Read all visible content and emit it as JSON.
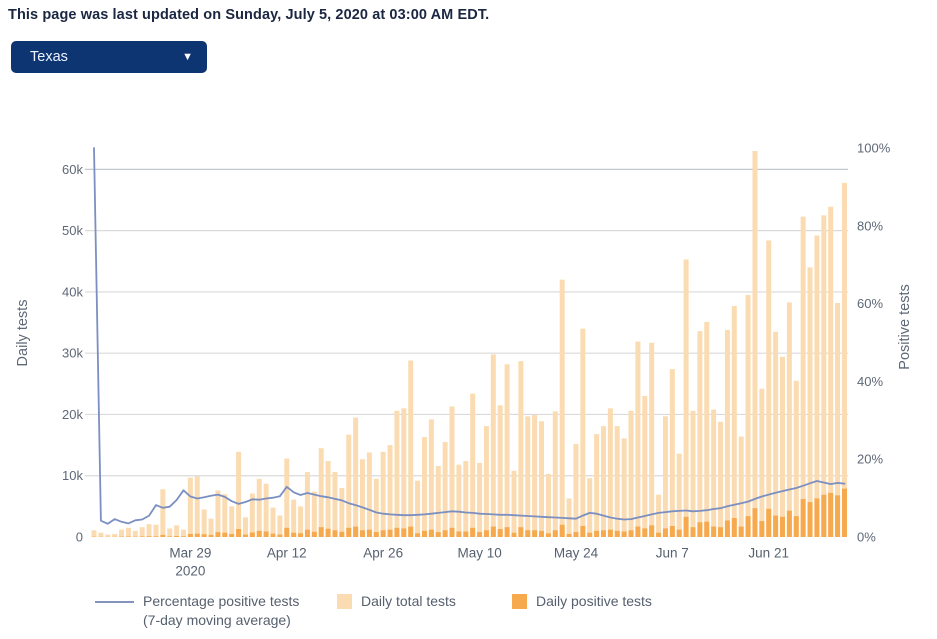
{
  "banner": {
    "text": "This page was last updated on Sunday, July 5, 2020 at 03:00 AM EDT."
  },
  "state_selector": {
    "value": "Texas",
    "caret": "▼",
    "bg_color": "#0d3572"
  },
  "legend": {
    "line_label_1": "Percentage positive tests",
    "line_label_2": "(7-day moving average)",
    "total_label": "Daily total tests",
    "positive_label": "Daily positive tests"
  },
  "chart_data": {
    "type": "bar",
    "subtype": "dual-axis combo: daily bars + percentage line, one bar per day",
    "title": "",
    "grid": "horizontal gridlines at 10k steps",
    "legend_position": "bottom",
    "x_axis": {
      "unit": "day",
      "n_days": 110,
      "ticks": [
        {
          "label": "Mar 29",
          "year": "2020",
          "day_index": 14
        },
        {
          "label": "Apr 12",
          "day_index": 28
        },
        {
          "label": "Apr 26",
          "day_index": 42
        },
        {
          "label": "May 10",
          "day_index": 56
        },
        {
          "label": "May 24",
          "day_index": 70
        },
        {
          "label": "Jun 7",
          "day_index": 84
        },
        {
          "label": "Jun 21",
          "day_index": 98
        }
      ]
    },
    "y_left": {
      "label": "Daily tests",
      "ticks": [
        "0",
        "10k",
        "20k",
        "30k",
        "40k",
        "50k",
        "60k"
      ],
      "tick_values_k": [
        0,
        10,
        20,
        30,
        40,
        50,
        60
      ],
      "max_value_k": 63.5
    },
    "y_right": {
      "label": "Positive tests",
      "ticks": [
        "0%",
        "20%",
        "40%",
        "60%",
        "80%",
        "100%"
      ],
      "tick_values_pct": [
        0,
        20,
        40,
        60,
        80,
        100
      ],
      "max_value_pct": 100
    },
    "series": [
      {
        "name": "Daily total tests",
        "type": "bar",
        "color": "#fbdcb2",
        "unit": "thousands of tests",
        "values": [
          1.1,
          0.7,
          0.4,
          0.5,
          1.2,
          1.5,
          1.0,
          1.6,
          2.1,
          2.0,
          7.8,
          1.4,
          1.9,
          1.2,
          9.7,
          9.9,
          4.5,
          3.0,
          7.6,
          7.0,
          5.0,
          13.9,
          3.2,
          7.1,
          9.5,
          8.7,
          4.8,
          3.5,
          12.8,
          6.1,
          5.0,
          10.6,
          7.4,
          14.5,
          12.4,
          10.6,
          8.0,
          16.7,
          19.5,
          12.7,
          13.8,
          9.5,
          13.9,
          15.0,
          20.6,
          21.0,
          28.8,
          9.2,
          16.3,
          19.2,
          11.6,
          15.5,
          21.3,
          11.8,
          12.4,
          23.4,
          12.1,
          18.1,
          29.8,
          21.5,
          28.2,
          10.8,
          28.7,
          19.7,
          19.9,
          18.9,
          10.3,
          20.5,
          42.0,
          6.3,
          15.2,
          34.0,
          9.6,
          16.8,
          18.1,
          21.0,
          18.1,
          16.1,
          20.6,
          31.9,
          23.0,
          31.7,
          6.9,
          19.7,
          27.4,
          13.6,
          45.3,
          20.6,
          33.6,
          35.1,
          20.8,
          18.8,
          33.8,
          37.7,
          16.4,
          39.5,
          63.0,
          24.2,
          48.4,
          33.5,
          29.4,
          38.3,
          25.5,
          52.3,
          44.0,
          49.2,
          52.5,
          53.9,
          38.2,
          57.8
        ]
      },
      {
        "name": "Daily positive tests",
        "type": "bar",
        "color": "#f7a94e",
        "unit": "thousands of tests",
        "values": [
          0.05,
          0.04,
          0.02,
          0.03,
          0.07,
          0.09,
          0.06,
          0.1,
          0.13,
          0.12,
          0.35,
          0.1,
          0.16,
          0.12,
          0.5,
          0.55,
          0.45,
          0.35,
          0.8,
          0.7,
          0.5,
          1.3,
          0.4,
          0.75,
          1.0,
          0.9,
          0.55,
          0.4,
          1.5,
          0.7,
          0.6,
          1.2,
          0.85,
          1.6,
          1.35,
          1.1,
          0.85,
          1.5,
          1.7,
          1.1,
          1.2,
          0.8,
          1.1,
          1.2,
          1.5,
          1.4,
          1.7,
          0.6,
          1.0,
          1.2,
          0.8,
          1.1,
          1.5,
          0.9,
          0.9,
          1.5,
          0.8,
          1.1,
          1.7,
          1.3,
          1.6,
          0.7,
          1.6,
          1.1,
          1.1,
          1.0,
          0.6,
          1.1,
          2.0,
          0.5,
          0.8,
          1.8,
          0.7,
          1.0,
          1.1,
          1.2,
          1.0,
          0.9,
          1.1,
          1.7,
          1.4,
          1.9,
          0.7,
          1.4,
          1.8,
          1.2,
          3.3,
          1.6,
          2.4,
          2.5,
          1.7,
          1.6,
          2.7,
          3.1,
          1.7,
          3.4,
          4.7,
          2.6,
          4.6,
          3.5,
          3.3,
          4.3,
          3.4,
          6.2,
          5.7,
          6.3,
          6.9,
          7.2,
          6.8,
          7.9
        ]
      },
      {
        "name": "Percentage positive tests (7-day moving average)",
        "type": "line",
        "color": "#7b8fc1",
        "unit": "percent",
        "values": [
          100,
          4.2,
          3.4,
          4.6,
          3.9,
          3.5,
          4.3,
          4.5,
          5.5,
          8.2,
          7.5,
          7.8,
          9.5,
          12.0,
          10.4,
          9.9,
          10.2,
          10.6,
          10.9,
          10.3,
          9.2,
          8.5,
          9.0,
          9.7,
          9.6,
          9.9,
          10.1,
          10.5,
          12.9,
          11.5,
          10.8,
          11.3,
          10.9,
          10.5,
          10.2,
          9.8,
          9.4,
          8.7,
          8.2,
          7.6,
          7.0,
          6.3,
          6.0,
          5.8,
          5.7,
          5.6,
          5.6,
          5.7,
          5.8,
          6.0,
          6.2,
          6.4,
          6.6,
          6.5,
          6.3,
          6.2,
          6.0,
          5.9,
          5.8,
          5.7,
          5.7,
          5.6,
          5.5,
          5.4,
          5.3,
          5.2,
          5.1,
          5.0,
          4.9,
          4.8,
          4.7,
          5.5,
          6.2,
          6.0,
          5.5,
          5.0,
          4.7,
          4.5,
          4.6,
          5.0,
          5.4,
          5.8,
          6.2,
          6.4,
          6.6,
          6.7,
          6.8,
          6.6,
          6.7,
          6.9,
          7.2,
          7.4,
          7.9,
          8.3,
          8.7,
          9.1,
          9.8,
          10.4,
          10.9,
          11.4,
          11.8,
          12.2,
          12.6,
          13.2,
          13.8,
          14.4,
          14.0,
          13.6,
          13.9,
          13.7
        ]
      }
    ]
  }
}
